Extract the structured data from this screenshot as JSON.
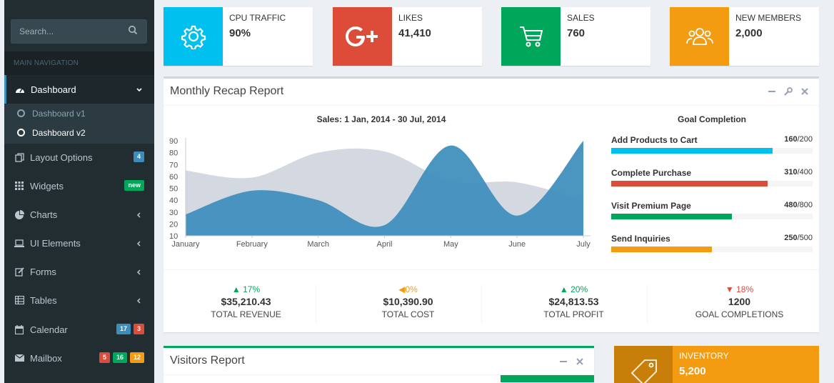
{
  "sidebar": {
    "search": {
      "placeholder": "Search..."
    },
    "header": "MAIN NAVIGATION",
    "items": [
      {
        "label": "Dashboard"
      },
      {
        "label": "Layout Options",
        "badges": [
          "4"
        ]
      },
      {
        "label": "Widgets",
        "badges": [
          "new"
        ]
      },
      {
        "label": "Charts"
      },
      {
        "label": "UI Elements"
      },
      {
        "label": "Forms"
      },
      {
        "label": "Tables"
      },
      {
        "label": "Calendar",
        "badges": [
          "17",
          "3"
        ]
      },
      {
        "label": "Mailbox",
        "badges": [
          "5",
          "16",
          "12"
        ]
      }
    ],
    "submenu": [
      {
        "label": "Dashboard v1"
      },
      {
        "label": "Dashboard v2"
      }
    ]
  },
  "info_boxes": [
    {
      "text": "CPU TRAFFIC",
      "number": "90%",
      "icon": "gear-icon",
      "color": "#00c0ef"
    },
    {
      "text": "LIKES",
      "number": "41,410",
      "icon": "google-plus-icon",
      "color": "#dd4b39"
    },
    {
      "text": "SALES",
      "number": "760",
      "icon": "shopping-cart-icon",
      "color": "#00a65a"
    },
    {
      "text": "NEW MEMBERS",
      "number": "2,000",
      "icon": "users-icon",
      "color": "#f39c12"
    }
  ],
  "recap": {
    "title": "Monthly Recap Report",
    "goal_title": "Goal Completion",
    "goals": [
      {
        "label": "Add Products to Cart",
        "value": "160",
        "total": "/200",
        "fraction": 0.8,
        "color": "#00c0ef"
      },
      {
        "label": "Complete Purchase",
        "value": "310",
        "total": "/400",
        "fraction": 0.775,
        "color": "#dd4b39"
      },
      {
        "label": "Visit Premium Page",
        "value": "480",
        "total": "/800",
        "fraction": 0.6,
        "color": "#00a65a"
      },
      {
        "label": "Send Inquiries",
        "value": "250",
        "total": "/500",
        "fraction": 0.5,
        "color": "#f39c12"
      }
    ],
    "stats": [
      {
        "pct": "17%",
        "dir": "up",
        "color": "#00a65a",
        "amount": "$35,210.43",
        "label": "TOTAL REVENUE"
      },
      {
        "pct": "0%",
        "dir": "flat",
        "color": "#f39c12",
        "amount": "$10,390.90",
        "label": "TOTAL COST"
      },
      {
        "pct": "20%",
        "dir": "up",
        "color": "#00a65a",
        "amount": "$24,813.53",
        "label": "TOTAL PROFIT"
      },
      {
        "pct": "18%",
        "dir": "down",
        "color": "#dd4b39",
        "amount": "1200",
        "label": "GOAL COMPLETIONS"
      }
    ]
  },
  "chart_data": {
    "type": "area",
    "title": "Sales: 1 Jan, 2014 - 30 Jul, 2014",
    "categories": [
      "January",
      "February",
      "March",
      "April",
      "May",
      "June",
      "July"
    ],
    "ylim": [
      10,
      90
    ],
    "yticks": [
      10,
      20,
      30,
      40,
      50,
      60,
      70,
      80,
      90
    ],
    "series": [
      {
        "values": [
          65,
          59,
          80,
          81,
          56,
          55,
          40
        ],
        "color": "#d2d6de"
      },
      {
        "values": [
          28,
          48,
          40,
          19,
          86,
          27,
          90
        ],
        "color": "#3c8dbc"
      }
    ]
  },
  "visitors": {
    "title": "Visitors Report"
  },
  "inventory": {
    "text": "INVENTORY",
    "number": "5,200"
  }
}
